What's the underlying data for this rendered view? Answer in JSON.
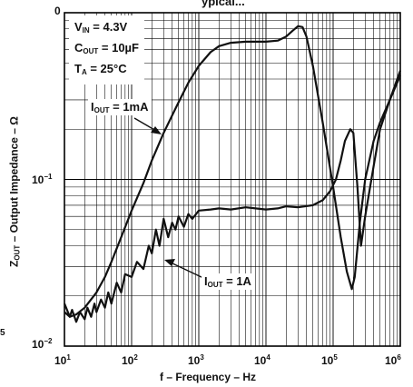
{
  "chart_data": {
    "type": "line",
    "title": "",
    "xlabel": "f – Frequency – Hz",
    "ylabel_main": "Z",
    "ylabel_sub": "OUT",
    "ylabel_rest": " – Output Impedance – Ω",
    "x_scale": "log",
    "y_scale": "log",
    "xlim": [
      10,
      1000000
    ],
    "ylim": [
      0.01,
      1
    ],
    "grid": true,
    "x_ticks": [
      {
        "base": "10",
        "exp": "1"
      },
      {
        "base": "10",
        "exp": "2"
      },
      {
        "base": "10",
        "exp": "3"
      },
      {
        "base": "10",
        "exp": "4"
      },
      {
        "base": "10",
        "exp": "5"
      },
      {
        "base": "10",
        "exp": "6"
      }
    ],
    "y_ticks": [
      {
        "text": "0",
        "value": 1
      },
      {
        "base": "10",
        "exp": "−1",
        "value": 0.1
      },
      {
        "base": "10",
        "exp": "−2",
        "value": 0.01
      }
    ],
    "edge_fragments": {
      "top_right": "ypical...",
      "left_5": "5"
    },
    "conditions": [
      {
        "main": "V",
        "sub": "IN",
        "rest": " = 4.3V"
      },
      {
        "main": "C",
        "sub": "OUT",
        "rest": " = 10µF"
      },
      {
        "main": "T",
        "sub": "A",
        "rest": " = 25°C"
      }
    ],
    "series": [
      {
        "name_main": "I",
        "name_sub": "OUT",
        "name_rest": " = 1mA",
        "x": [
          10,
          12,
          15,
          20,
          30,
          40,
          50,
          70,
          100,
          150,
          200,
          300,
          500,
          700,
          1000,
          1500,
          2000,
          3000,
          5000,
          7000,
          10000,
          15000,
          20000,
          25000,
          30000,
          35000,
          40000,
          50000,
          70000,
          100000,
          130000,
          160000,
          190000,
          210000,
          250000,
          300000,
          400000,
          500000,
          700000,
          1000000
        ],
        "y": [
          0.016,
          0.015,
          0.0155,
          0.017,
          0.021,
          0.026,
          0.032,
          0.045,
          0.065,
          0.095,
          0.13,
          0.19,
          0.29,
          0.38,
          0.48,
          0.58,
          0.63,
          0.66,
          0.67,
          0.67,
          0.67,
          0.68,
          0.72,
          0.78,
          0.83,
          0.82,
          0.72,
          0.48,
          0.22,
          0.09,
          0.045,
          0.028,
          0.022,
          0.026,
          0.055,
          0.1,
          0.17,
          0.22,
          0.3,
          0.42
        ]
      },
      {
        "name_main": "I",
        "name_sub": "OUT",
        "name_rest": " = 1A",
        "x": [
          10,
          12,
          13,
          15,
          17,
          20,
          22,
          25,
          28,
          30,
          35,
          40,
          45,
          50,
          60,
          70,
          80,
          100,
          120,
          150,
          180,
          200,
          230,
          260,
          300,
          350,
          400,
          450,
          500,
          600,
          700,
          800,
          1000,
          1500,
          2000,
          3000,
          5000,
          7000,
          10000,
          15000,
          20000,
          30000,
          50000,
          70000,
          90000,
          110000,
          130000,
          150000,
          180000,
          200000,
          230000,
          260000,
          300000,
          400000,
          500000,
          700000,
          1000000
        ],
        "y": [
          0.018,
          0.015,
          0.0165,
          0.014,
          0.016,
          0.0145,
          0.017,
          0.015,
          0.018,
          0.016,
          0.019,
          0.017,
          0.021,
          0.018,
          0.024,
          0.021,
          0.027,
          0.026,
          0.032,
          0.029,
          0.04,
          0.036,
          0.05,
          0.04,
          0.058,
          0.045,
          0.055,
          0.05,
          0.06,
          0.052,
          0.062,
          0.058,
          0.065,
          0.066,
          0.067,
          0.066,
          0.068,
          0.067,
          0.066,
          0.067,
          0.069,
          0.068,
          0.07,
          0.075,
          0.085,
          0.1,
          0.13,
          0.17,
          0.2,
          0.19,
          0.09,
          0.04,
          0.06,
          0.12,
          0.2,
          0.3,
          0.45
        ]
      }
    ],
    "annotations": [
      {
        "series": 0,
        "label_pos": "middle-left",
        "arrow": true
      },
      {
        "series": 1,
        "label_pos": "lower-right",
        "arrow": true
      }
    ]
  }
}
